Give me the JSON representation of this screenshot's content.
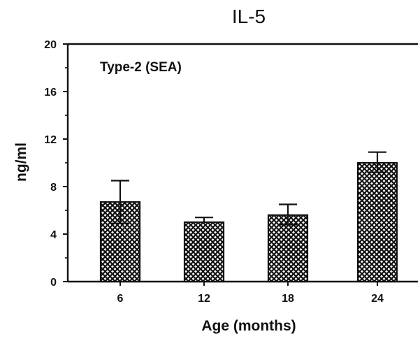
{
  "chart_data": {
    "type": "bar",
    "title": "IL-5",
    "annotation": "Type-2 (SEA)",
    "xlabel": "Age (months)",
    "ylabel": "ng/ml",
    "categories": [
      "6",
      "12",
      "18",
      "24"
    ],
    "values": [
      6.7,
      5.0,
      5.6,
      10.0
    ],
    "error_upper": [
      8.5,
      5.4,
      6.5,
      10.9
    ],
    "error_lower": [
      4.9,
      null,
      4.8,
      9.2
    ],
    "ylim": [
      0,
      20
    ],
    "yticks": [
      "0",
      "4",
      "8",
      "12",
      "16",
      "20"
    ],
    "grid": false,
    "bar_fill": "crosshatch"
  },
  "colors": {
    "ink": "#111111",
    "background": "#ffffff"
  }
}
